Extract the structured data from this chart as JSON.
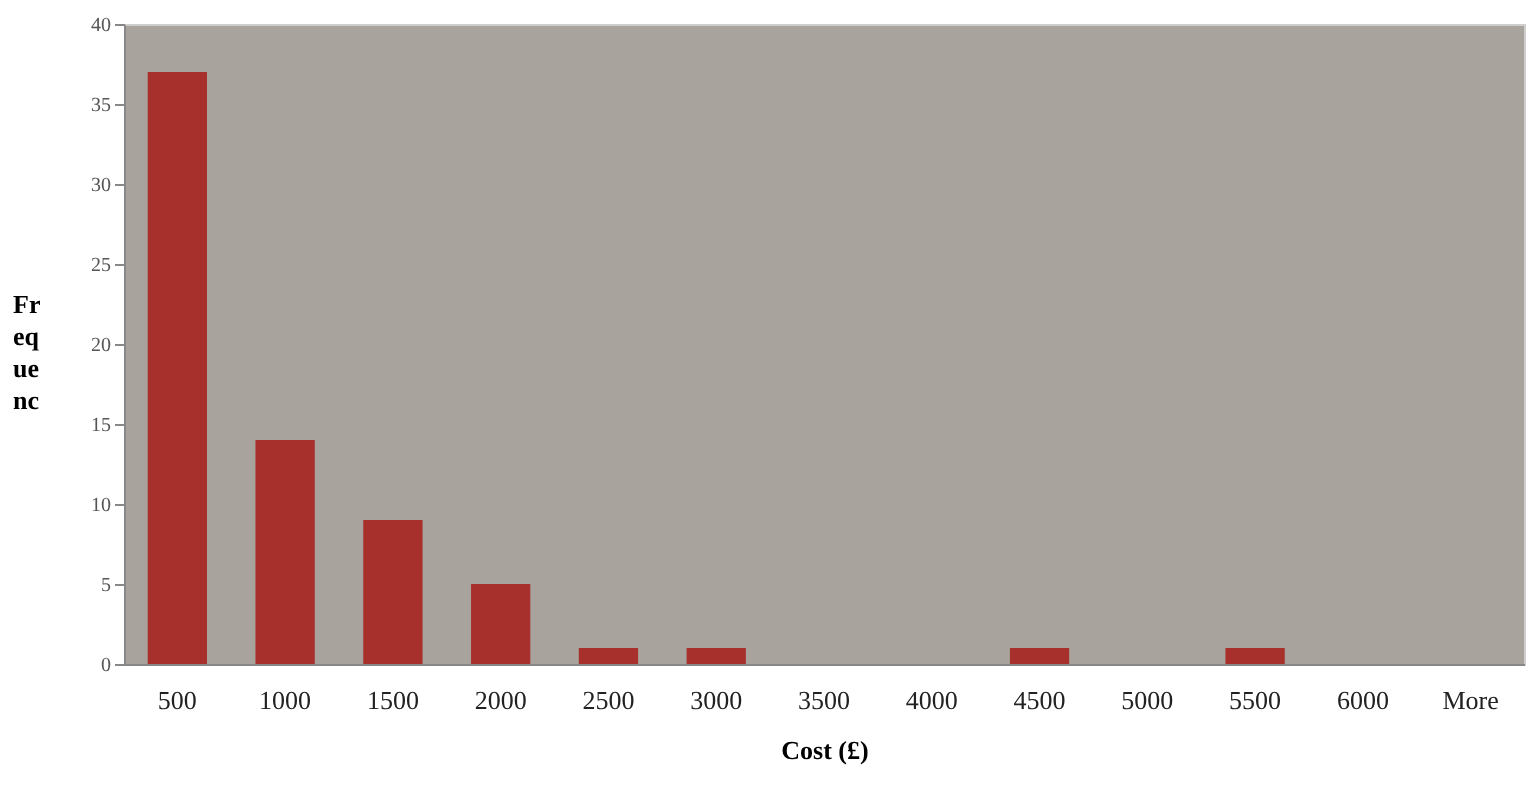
{
  "chart_data": {
    "type": "bar",
    "xlabel": "Cost (£)",
    "ylabel": "Fr eq ue nc",
    "categories": [
      "500",
      "1000",
      "1500",
      "2000",
      "2500",
      "3000",
      "3500",
      "4000",
      "4500",
      "5000",
      "5500",
      "6000",
      "More"
    ],
    "values": [
      37,
      14,
      9,
      5,
      1,
      1,
      0,
      0,
      1,
      0,
      1,
      0,
      0
    ],
    "color": "#a8302c",
    "ylim": [
      0,
      40
    ],
    "yticks": [
      0,
      5,
      10,
      15,
      20,
      25,
      30,
      35,
      40
    ],
    "grid": false
  }
}
